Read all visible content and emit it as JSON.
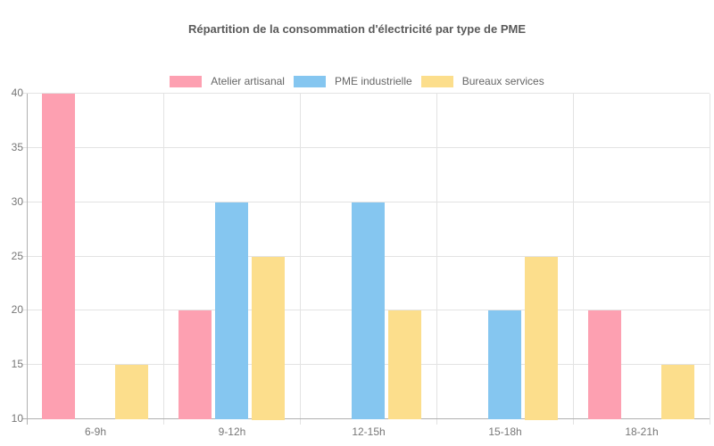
{
  "page": {
    "background": "#ffffff"
  },
  "chart_data": {
    "type": "bar",
    "title": "Répartition de la consommation d'électricité par type de PME",
    "categories": [
      "6-9h",
      "9-12h",
      "12-15h",
      "15-18h",
      "18-21h"
    ],
    "series": [
      {
        "name": "Atelier artisanal",
        "color": "#FDA0B1",
        "values": [
          40,
          20,
          10,
          10,
          20
        ]
      },
      {
        "name": "PME industrielle",
        "color": "#85C6F0",
        "values": [
          10,
          30,
          30,
          20,
          10
        ]
      },
      {
        "name": "Bureaux services",
        "color": "#FCDE8C",
        "values": [
          15,
          25,
          20,
          25,
          15
        ]
      }
    ],
    "ylim": [
      10,
      40
    ],
    "yticks": [
      10,
      15,
      20,
      25,
      30,
      35,
      40
    ],
    "grid": true,
    "legend_position": "top",
    "xlabel": "",
    "ylabel": ""
  },
  "style": {
    "grid_color": "#e3e3e3",
    "axis_color": "#b0b0b0",
    "tick_label_color": "#777777",
    "title_color": "#5a5a5a",
    "legend_text_color": "#666666"
  }
}
